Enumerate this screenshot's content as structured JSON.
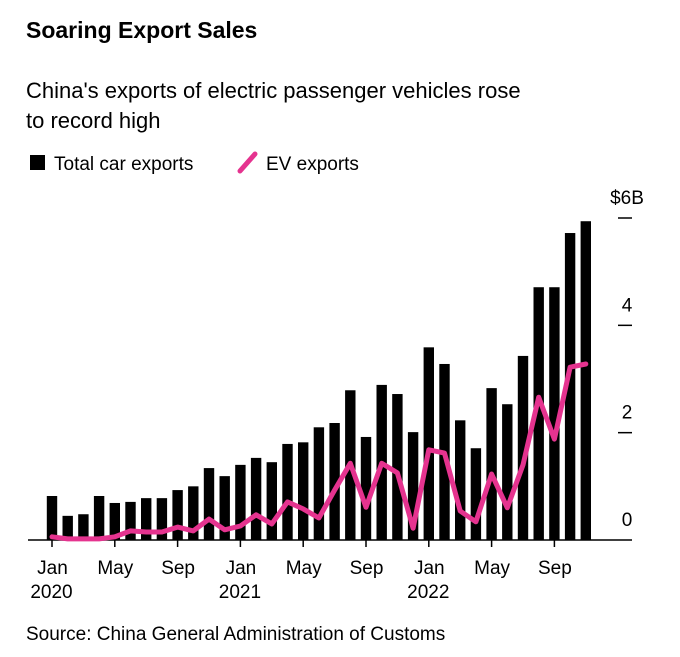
{
  "chart_data": {
    "type": "bar_line",
    "title": "Soaring Export Sales",
    "subtitle": [
      "China's exports of electric passenger vehicles rose",
      "to record high"
    ],
    "source": "Source: China General Administration of Customs",
    "categories": [
      "Jan",
      null,
      null,
      null,
      "May",
      null,
      null,
      null,
      "Sep",
      null,
      null,
      null,
      "Jan",
      null,
      null,
      null,
      "May",
      null,
      null,
      null,
      "Sep",
      null,
      null,
      null,
      "Jan",
      null,
      null,
      null,
      "May",
      null,
      null,
      null,
      "Sep",
      null,
      null
    ],
    "years": [
      "2020",
      null,
      null,
      null,
      null,
      null,
      null,
      null,
      null,
      null,
      null,
      null,
      "2021",
      null,
      null,
      null,
      null,
      null,
      null,
      null,
      null,
      null,
      null,
      null,
      "2022",
      null,
      null,
      null,
      null,
      null,
      null,
      null,
      null,
      null,
      null
    ],
    "series": [
      {
        "name": "Total car exports",
        "type": "bar",
        "color": "#000000",
        "values": [
          0.82,
          0.45,
          0.48,
          0.82,
          0.69,
          0.71,
          0.78,
          0.78,
          0.93,
          1.0,
          1.34,
          1.19,
          1.4,
          1.53,
          1.45,
          1.79,
          1.82,
          2.1,
          2.18,
          2.79,
          1.92,
          2.89,
          2.72,
          2.01,
          3.59,
          3.28,
          2.23,
          1.71,
          2.83,
          2.53,
          3.43,
          4.71,
          4.71,
          5.72,
          5.94
        ]
      },
      {
        "name": "EV exports",
        "type": "line",
        "color": "#e5338f",
        "values": [
          0.06,
          0.02,
          0.02,
          0.02,
          0.06,
          0.17,
          0.15,
          0.15,
          0.24,
          0.17,
          0.39,
          0.19,
          0.26,
          0.47,
          0.3,
          0.71,
          0.58,
          0.41,
          0.93,
          1.43,
          0.61,
          1.43,
          1.25,
          0.22,
          1.68,
          1.62,
          0.54,
          0.34,
          1.23,
          0.6,
          1.4,
          2.66,
          1.88,
          3.22,
          3.28
        ]
      }
    ],
    "ylim": [
      0,
      6
    ],
    "yticks": [
      0,
      2,
      4,
      {
        "value": 6,
        "label": "$6B"
      }
    ]
  }
}
